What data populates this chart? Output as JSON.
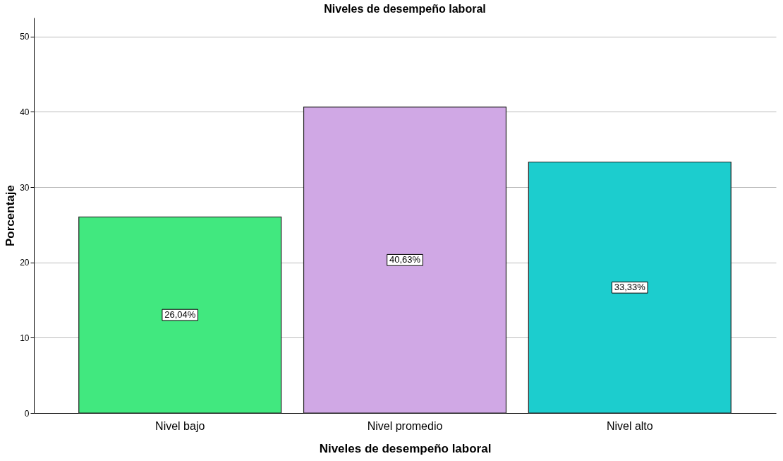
{
  "chart_data": {
    "type": "bar",
    "title": "Niveles de desempeño laboral",
    "xlabel": "Niveles de desempeño laboral",
    "ylabel": "Porcentaje",
    "categories": [
      "Nivel bajo",
      "Nivel promedio",
      "Nivel alto"
    ],
    "values": [
      26.04,
      40.63,
      33.33
    ],
    "colors": [
      "#41e87f",
      "#d0a8e5",
      "#1ccdce"
    ],
    "value_labels": [
      "26,04%",
      "40,63%",
      "33,33%"
    ],
    "ylim": [
      0,
      52.5
    ],
    "yticks": [
      0,
      10,
      20,
      30,
      40,
      50
    ],
    "grid": "y"
  }
}
